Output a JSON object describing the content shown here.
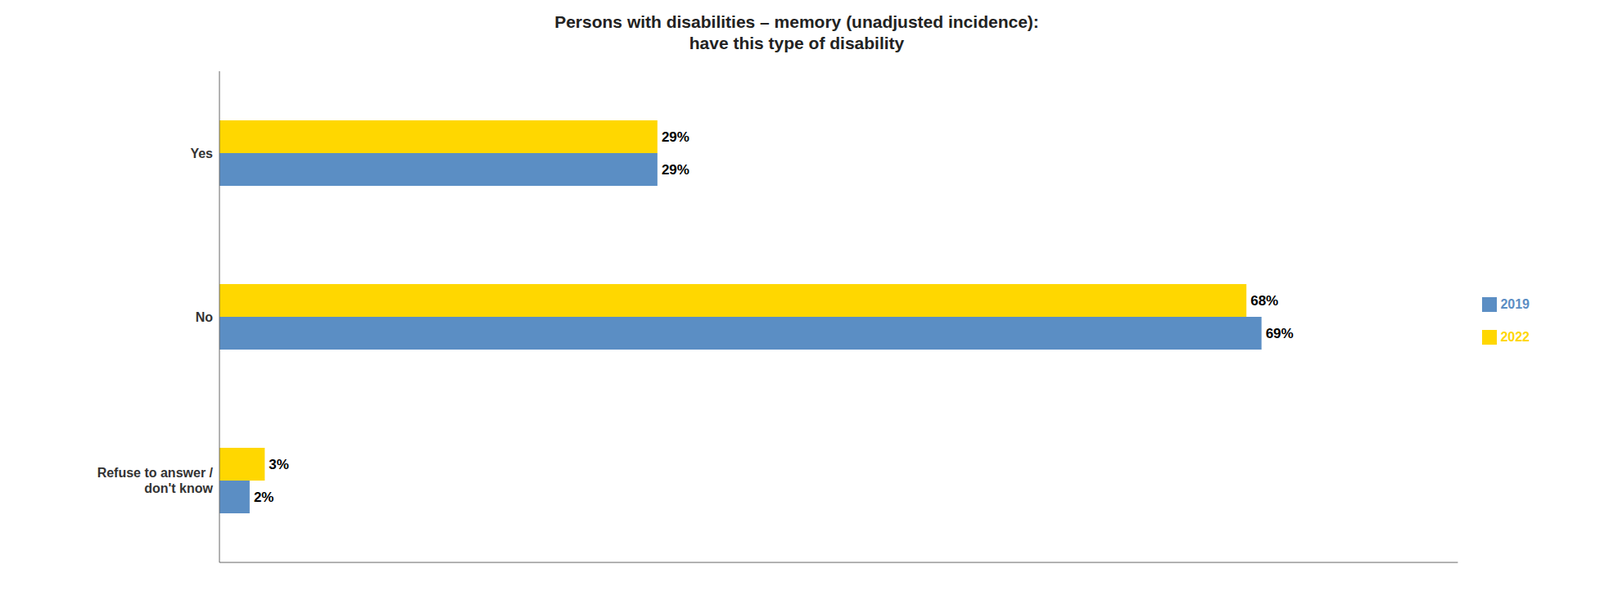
{
  "chart_data": {
    "type": "bar",
    "orientation": "horizontal",
    "title": "Persons with disabilities – memory (unadjusted incidence):\nhave this type of disability",
    "categories": [
      "Yes",
      "No",
      "Refuse to answer /\ndon't know"
    ],
    "series": [
      {
        "name": "2022",
        "color": "#FFD700",
        "values": [
          29,
          68,
          3
        ],
        "value_labels": [
          "29%",
          "68%",
          "3%"
        ]
      },
      {
        "name": "2019",
        "color": "#5B8EC4",
        "values": [
          29,
          69,
          2
        ],
        "value_labels": [
          "29%",
          "69%",
          "2%"
        ]
      }
    ],
    "xlim": [
      0,
      82
    ],
    "grid": false,
    "legend": "right",
    "data_labels": true,
    "tick_labels": "y"
  }
}
